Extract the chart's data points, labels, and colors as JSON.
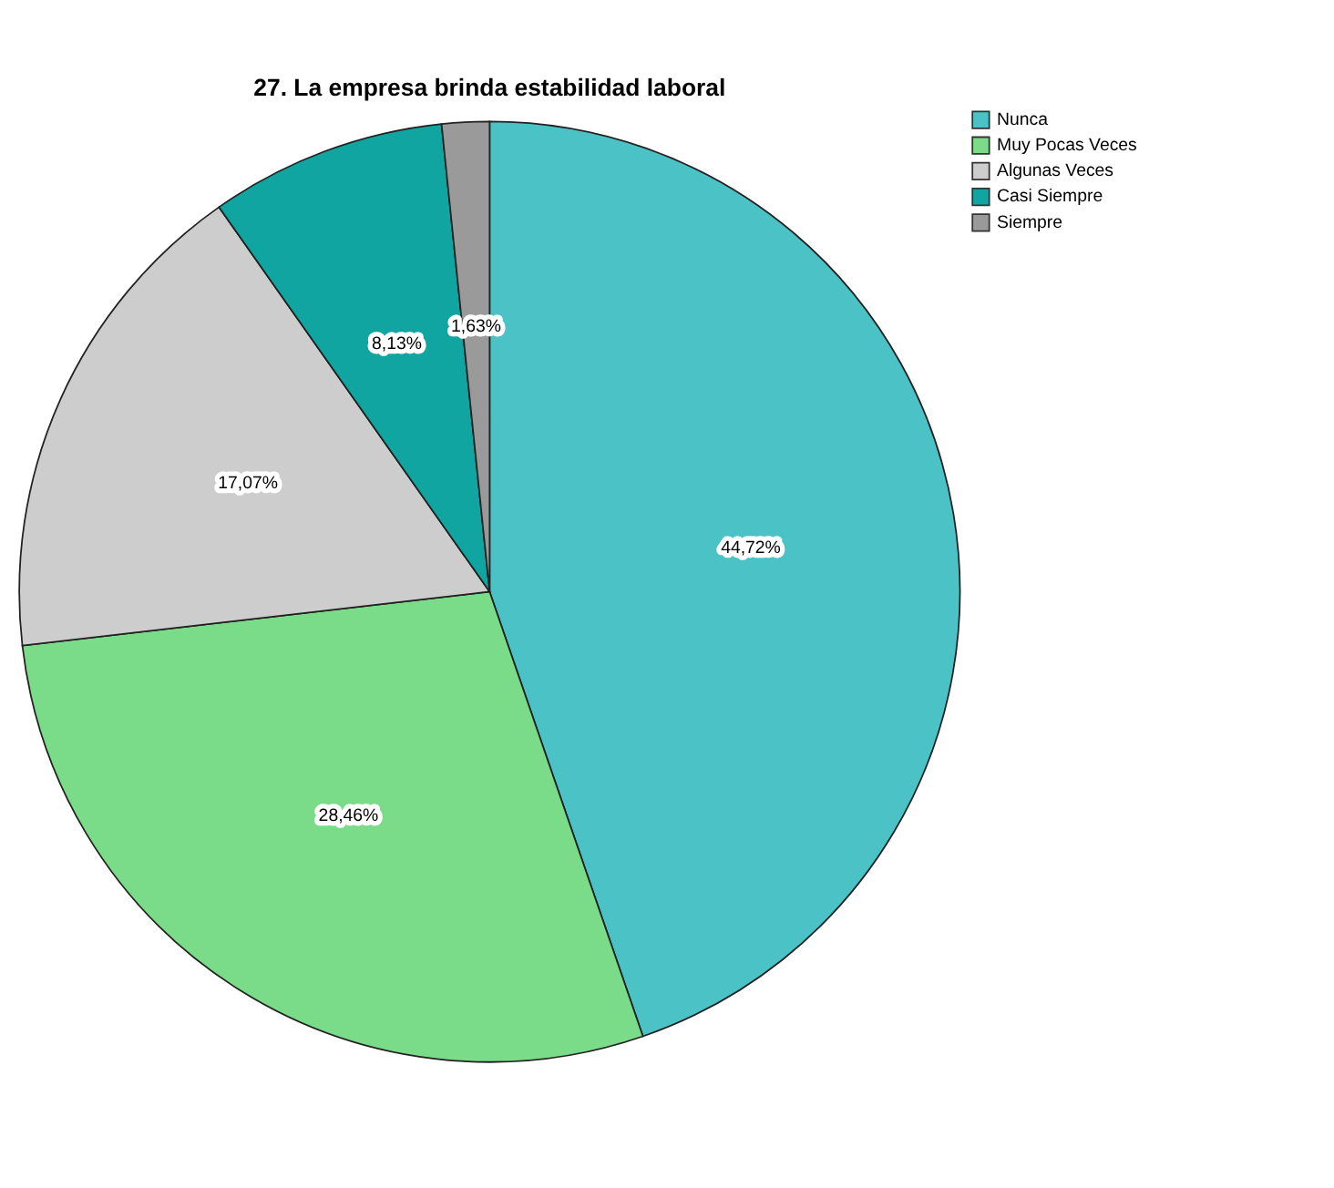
{
  "chart_data": {
    "type": "pie",
    "title": "27. La empresa brinda estabilidad laboral",
    "categories": [
      "Nunca",
      "Muy Pocas Veces",
      "Algunas Veces",
      "Casi Siempre",
      "Siempre"
    ],
    "values": [
      44.72,
      28.46,
      17.07,
      8.13,
      1.63
    ],
    "colors": [
      "#4bc3c6",
      "#7adc88",
      "#cdcdcd",
      "#10a5a0",
      "#9a9a9a"
    ],
    "value_labels": [
      "44,72%",
      "28,46%",
      "17,07%",
      "8,13%",
      "1,63%"
    ],
    "legend": "top right"
  }
}
